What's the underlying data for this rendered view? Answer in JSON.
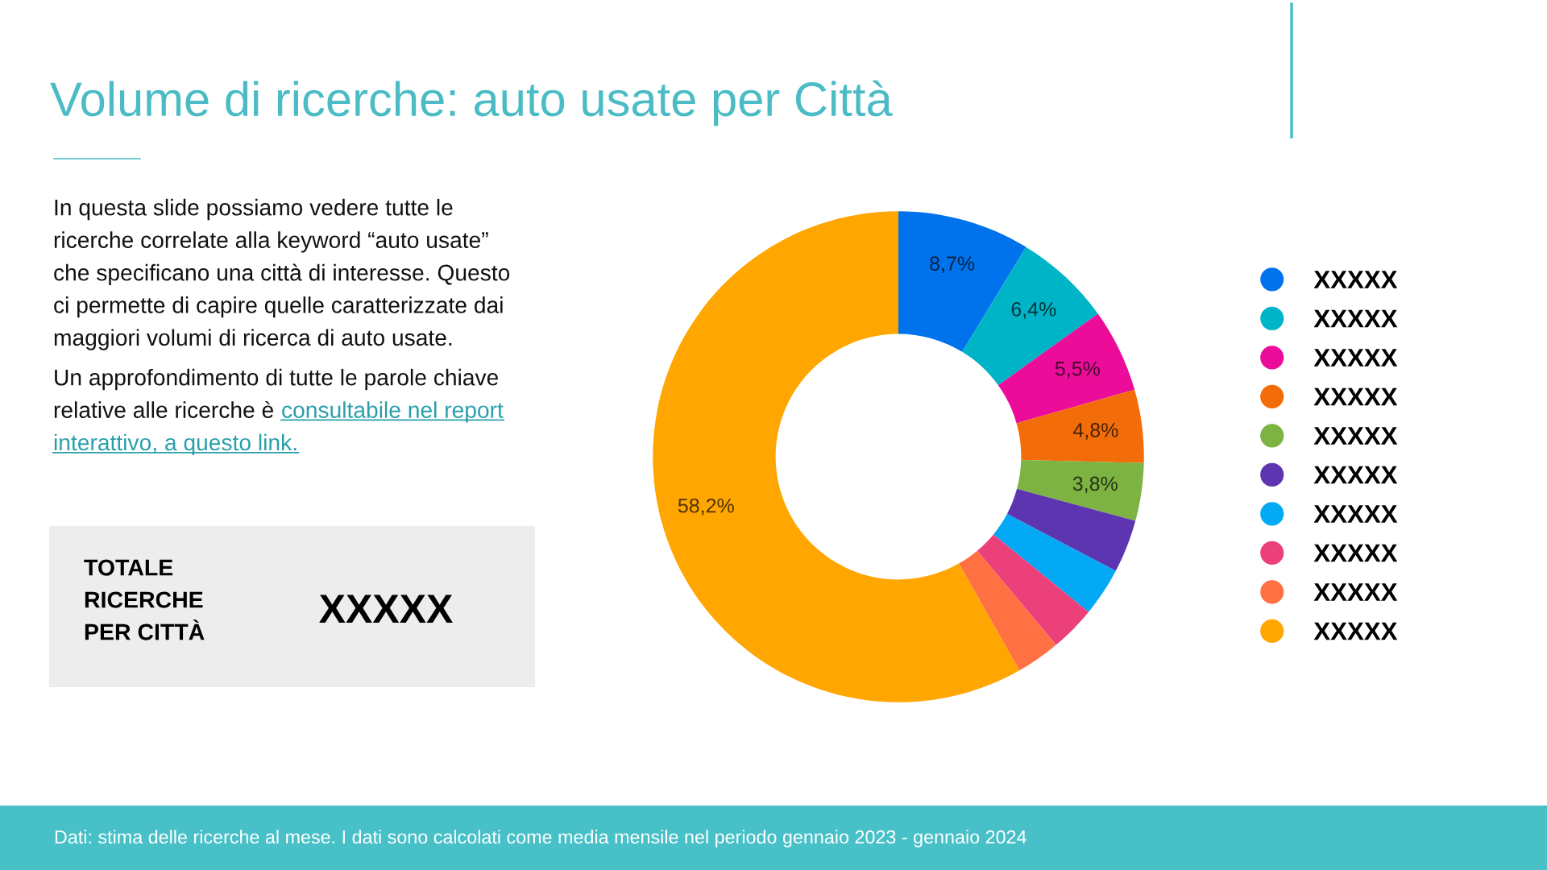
{
  "chart_data": {
    "type": "donut",
    "title": "Volume di ricerche: auto usate per Città",
    "categories": [
      "XXXXX",
      "XXXXX",
      "XXXXX",
      "XXXXX",
      "XXXXX",
      "XXXXX",
      "XXXXX",
      "XXXXX",
      "XXXXX",
      "XXXXX"
    ],
    "values": [
      8.7,
      6.4,
      5.5,
      4.8,
      3.8,
      3.5,
      3.2,
      3.0,
      2.9,
      58.2
    ],
    "colors": [
      "#0073ec",
      "#00b4c8",
      "#ec0c9a",
      "#f26d0a",
      "#7cb342",
      "#5e35b1",
      "#03a9f4",
      "#ec407a",
      "#ff7043",
      "#ffa600"
    ],
    "value_labels": [
      "8,7%",
      "6,4%",
      "5,5%",
      "4,8%",
      "3,8%",
      null,
      null,
      null,
      null,
      "58,2%"
    ],
    "legend": "right",
    "annotations": [
      "In questa slide possiamo vedere tutte le\nricerche correlate alla keyword “auto usate”\nche specificano una città di interesse. Questo\nci permette di capire quelle caratterizzate dai\nmaggiori volumi di ricerca di auto usate.",
      "Un approfondimento di tutte le parole chiave",
      "relative alle ricerche è",
      "consultabile nel report",
      "interattivo, a questo link.",
      "TOTALE\nRICERCHE\nPER CITTÀ",
      "XXXXX",
      "Dati: stima delle ricerche al mese. I dati sono calcolati come media mensile nel periodo gennaio 2023 - gennaio 2024"
    ]
  }
}
